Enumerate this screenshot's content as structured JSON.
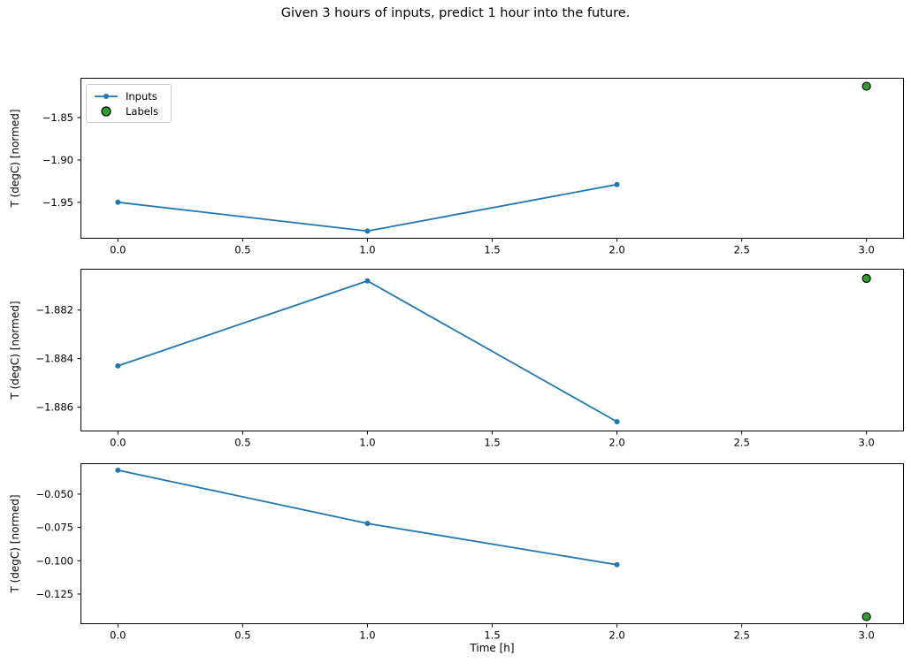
{
  "title": "Given 3 hours of inputs, predict 1 hour into the future.",
  "xlabel": "Time [h]",
  "ylabel": "T (degC) [normed]",
  "colors": {
    "inputs_line": "#1f77b4",
    "labels_fill": "#2ca02c",
    "labels_edge": "#000000",
    "axis": "#000000",
    "legend_border": "#cccccc"
  },
  "legend": {
    "items": [
      {
        "label": "Inputs",
        "marker": "line-with-dot-icon",
        "color": "#1f77b4"
      },
      {
        "label": "Labels",
        "marker": "filled-circle-icon",
        "color": "#2ca02c"
      }
    ]
  },
  "chart_data": [
    {
      "type": "line",
      "name": "subplot-top",
      "x": [
        0,
        1,
        2
      ],
      "series": [
        {
          "name": "Inputs",
          "values": [
            -1.95,
            -1.984,
            -1.929
          ]
        }
      ],
      "label_point": {
        "name": "Labels",
        "x": 3,
        "y": -1.813
      },
      "ylabel": "T (degC) [normed]",
      "xlim": [
        -0.15,
        3.15
      ],
      "ylim": [
        -1.993,
        -1.803
      ],
      "xticks": [
        0,
        0.5,
        1,
        1.5,
        2,
        2.5,
        3
      ],
      "xtick_labels": [
        "0.0",
        "0.5",
        "1.0",
        "1.5",
        "2.0",
        "2.5",
        "3.0"
      ],
      "yticks": [
        -1.85,
        -1.9,
        -1.95
      ],
      "ytick_labels": [
        "−1.85",
        "−1.90",
        "−1.95"
      ],
      "legend_visible": true,
      "grid": false
    },
    {
      "type": "line",
      "name": "subplot-middle",
      "x": [
        0,
        1,
        2
      ],
      "series": [
        {
          "name": "Inputs",
          "values": [
            -1.8843,
            -1.8808,
            -1.8866
          ]
        }
      ],
      "label_point": {
        "name": "Labels",
        "x": 3,
        "y": -1.8807
      },
      "ylabel": "T (degC) [normed]",
      "xlim": [
        -0.15,
        3.15
      ],
      "ylim": [
        -1.887,
        -1.8803
      ],
      "xticks": [
        0,
        0.5,
        1,
        1.5,
        2,
        2.5,
        3
      ],
      "xtick_labels": [
        "0.0",
        "0.5",
        "1.0",
        "1.5",
        "2.0",
        "2.5",
        "3.0"
      ],
      "yticks": [
        -1.882,
        -1.884,
        -1.886
      ],
      "ytick_labels": [
        "−1.882",
        "−1.884",
        "−1.886"
      ],
      "legend_visible": false,
      "grid": false
    },
    {
      "type": "line",
      "name": "subplot-bottom",
      "x": [
        0,
        1,
        2
      ],
      "series": [
        {
          "name": "Inputs",
          "values": [
            -0.032,
            -0.072,
            -0.103
          ]
        }
      ],
      "label_point": {
        "name": "Labels",
        "x": 3,
        "y": -0.142
      },
      "xlabel": "Time [h]",
      "ylabel": "T (degC) [normed]",
      "xlim": [
        -0.15,
        3.15
      ],
      "ylim": [
        -0.1476,
        -0.0268
      ],
      "xticks": [
        0,
        0.5,
        1,
        1.5,
        2,
        2.5,
        3
      ],
      "xtick_labels": [
        "0.0",
        "0.5",
        "1.0",
        "1.5",
        "2.0",
        "2.5",
        "3.0"
      ],
      "yticks": [
        -0.05,
        -0.075,
        -0.1,
        -0.125
      ],
      "ytick_labels": [
        "−0.050",
        "−0.075",
        "−0.100",
        "−0.125"
      ],
      "legend_visible": false,
      "grid": false
    }
  ]
}
